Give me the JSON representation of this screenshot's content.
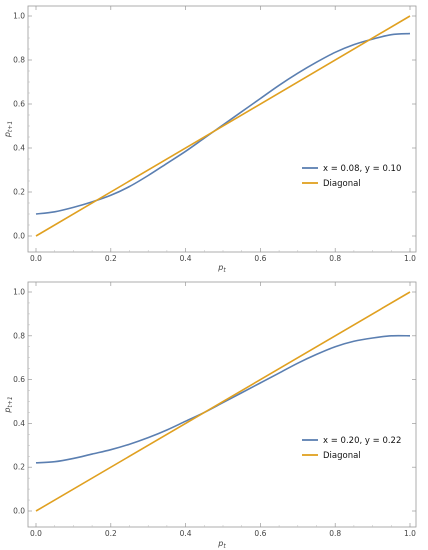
{
  "chart_data": [
    {
      "type": "line",
      "xlabel": "p_t",
      "ylabel": "p_t+1",
      "xlim": [
        0,
        1
      ],
      "ylim": [
        -0.04,
        1.04
      ],
      "xticks": [
        "0.0",
        "0.2",
        "0.4",
        "0.6",
        "0.8",
        "1.0"
      ],
      "yticks": [
        "0.0",
        "0.2",
        "0.4",
        "0.6",
        "0.8",
        "1.0"
      ],
      "grid": false,
      "legend_position": "center-right",
      "series": [
        {
          "name": "x = 0.08, y = 0.10",
          "color": "#5b7fb1",
          "x": [
            0,
            0.05,
            0.1,
            0.15,
            0.2,
            0.25,
            0.3,
            0.35,
            0.4,
            0.45,
            0.5,
            0.55,
            0.6,
            0.65,
            0.7,
            0.75,
            0.8,
            0.85,
            0.9,
            0.95,
            1.0
          ],
          "y": [
            0.1,
            0.11,
            0.13,
            0.155,
            0.185,
            0.225,
            0.275,
            0.33,
            0.385,
            0.445,
            0.505,
            0.565,
            0.625,
            0.685,
            0.74,
            0.79,
            0.835,
            0.87,
            0.895,
            0.915,
            0.92
          ]
        },
        {
          "name": "Diagonal",
          "color": "#e0a020",
          "x": [
            0,
            1
          ],
          "y": [
            0,
            1
          ]
        }
      ]
    },
    {
      "type": "line",
      "xlabel": "p_t",
      "ylabel": "p_t+1",
      "xlim": [
        0,
        1
      ],
      "ylim": [
        -0.04,
        1.04
      ],
      "xticks": [
        "0.0",
        "0.2",
        "0.4",
        "0.6",
        "0.8",
        "1.0"
      ],
      "yticks": [
        "0.0",
        "0.2",
        "0.4",
        "0.6",
        "0.8",
        "1.0"
      ],
      "grid": false,
      "legend_position": "center-right",
      "series": [
        {
          "name": "x = 0.20, y = 0.22",
          "color": "#5b7fb1",
          "x": [
            0,
            0.05,
            0.1,
            0.15,
            0.2,
            0.25,
            0.3,
            0.35,
            0.4,
            0.45,
            0.5,
            0.55,
            0.6,
            0.65,
            0.7,
            0.75,
            0.8,
            0.85,
            0.9,
            0.95,
            1.0
          ],
          "y": [
            0.22,
            0.225,
            0.24,
            0.26,
            0.28,
            0.305,
            0.335,
            0.37,
            0.41,
            0.45,
            0.495,
            0.54,
            0.585,
            0.63,
            0.675,
            0.715,
            0.75,
            0.775,
            0.79,
            0.8,
            0.8
          ]
        },
        {
          "name": "Diagonal",
          "color": "#e0a020",
          "x": [
            0,
            1
          ],
          "y": [
            0,
            1
          ]
        }
      ]
    }
  ]
}
